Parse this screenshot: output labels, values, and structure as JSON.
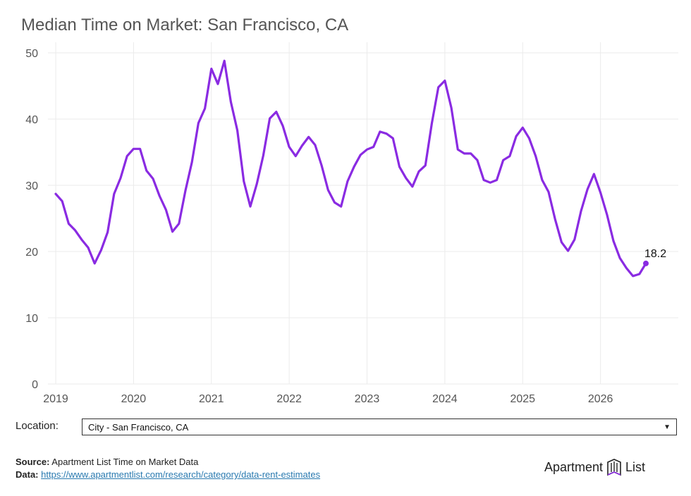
{
  "title": "Median Time on Market: San Francisco, CA",
  "chart_data": {
    "type": "line",
    "x_start": 2019.0,
    "x_step_months": 1,
    "xlim": [
      2018.9,
      2027.0
    ],
    "ylim": [
      0,
      50
    ],
    "yticks": [
      0,
      10,
      20,
      30,
      40,
      50
    ],
    "xticks": [
      2019,
      2020,
      2021,
      2022,
      2023,
      2024,
      2025,
      2026
    ],
    "grid": true,
    "color": "#8a2be2",
    "end_label": "18.2",
    "values": [
      28.7,
      27.6,
      24.2,
      23.2,
      21.8,
      20.6,
      18.2,
      20.2,
      22.9,
      28.7,
      31.1,
      34.4,
      35.5,
      35.5,
      32.2,
      31.0,
      28.4,
      26.3,
      23.0,
      24.2,
      29.2,
      33.5,
      39.4,
      41.6,
      47.6,
      45.3,
      48.8,
      42.6,
      38.3,
      30.6,
      26.8,
      30.2,
      34.5,
      40.1,
      41.1,
      39.0,
      35.8,
      34.4,
      36.0,
      37.3,
      36.1,
      33.0,
      29.3,
      27.4,
      26.8,
      30.6,
      32.8,
      34.6,
      35.4,
      35.8,
      38.1,
      37.8,
      37.1,
      32.8,
      31.1,
      29.8,
      32.1,
      33.0,
      39.4,
      44.8,
      45.8,
      41.7,
      35.4,
      34.8,
      34.8,
      33.8,
      30.8,
      30.4,
      30.8,
      33.8,
      34.4,
      37.4,
      38.7,
      37.1,
      34.4,
      30.8,
      29.0,
      24.9,
      21.4,
      20.1,
      21.8,
      26.1,
      29.4,
      31.7,
      28.9,
      25.6,
      21.6,
      19.0,
      17.5,
      16.3,
      16.6,
      18.2
    ]
  },
  "location": {
    "label": "Location:",
    "selected": "City - San Francisco, CA",
    "caret_icon": "▼"
  },
  "footer": {
    "source_label": "Source:",
    "source_text": " Apartment List Time on Market Data",
    "data_label": "Data:",
    "data_link": "https://www.apartmentlist.com/research/category/data-rent-estimates"
  },
  "logo": {
    "left": "Apartment",
    "right": "List"
  }
}
